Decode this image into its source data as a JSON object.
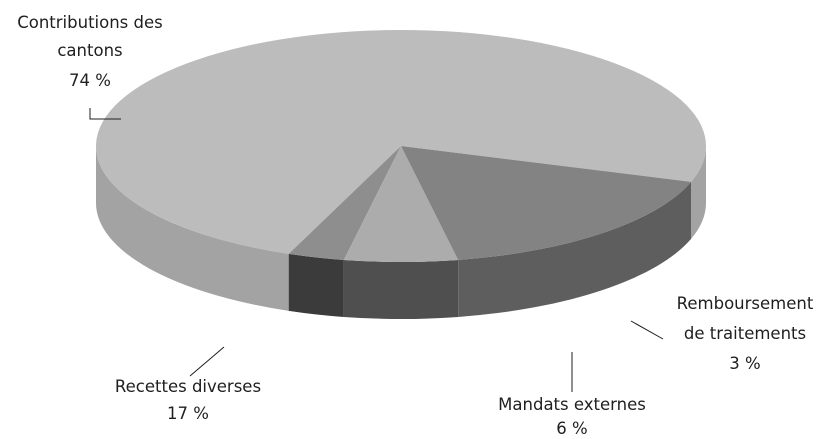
{
  "chart_data": {
    "type": "pie",
    "style": "3d",
    "title": "",
    "slices": [
      {
        "key": "cantons",
        "label_lines": [
          "Contributions des",
          "cantons"
        ],
        "value_label": "74 %",
        "value": 74,
        "top_color": "#bcbcbc",
        "side_color": "#a3a3a3"
      },
      {
        "key": "remboursement",
        "label_lines": [
          "Remboursement",
          "de traitements"
        ],
        "value_label": "3 %",
        "value": 3,
        "top_color": "#8e8e8e",
        "side_color": "#3b3b3b"
      },
      {
        "key": "mandats",
        "label_lines": [
          "Mandats externes"
        ],
        "value_label": "6 %",
        "value": 6,
        "top_color": "#acacac",
        "side_color": "#4f4f4f"
      },
      {
        "key": "recettes",
        "label_lines": [
          "Recettes diverses"
        ],
        "value_label": "17 %",
        "value": 17,
        "top_color": "#838383",
        "side_color": "#5e5e5e"
      }
    ]
  }
}
